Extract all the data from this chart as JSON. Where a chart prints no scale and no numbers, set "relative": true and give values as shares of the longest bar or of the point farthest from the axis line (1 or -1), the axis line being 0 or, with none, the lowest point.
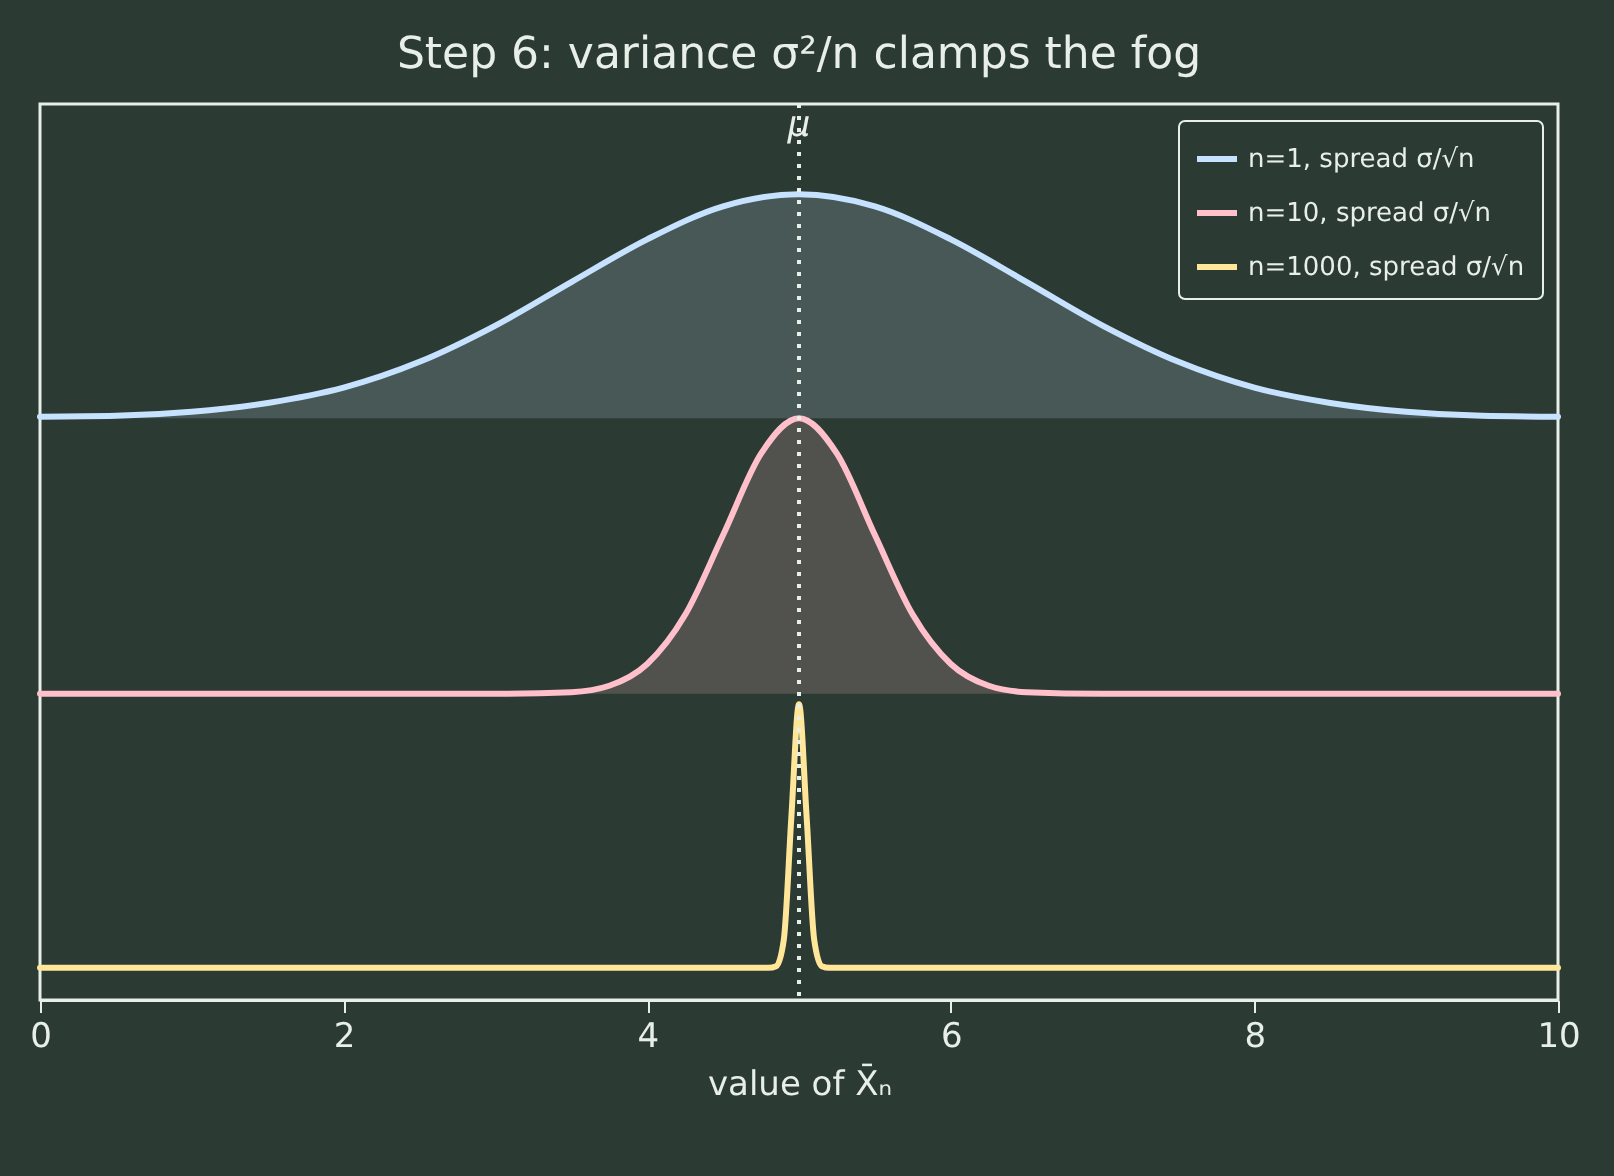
{
  "chart_data": {
    "type": "line",
    "relative": true,
    "title": "Step 6: variance σ²/n clamps the fog",
    "xlabel": "value of X̄ₙ",
    "xlim": [
      0,
      10
    ],
    "xticks": [
      0,
      2,
      4,
      6,
      8,
      10
    ],
    "grid": false,
    "legend": "top right",
    "line_style": "solid",
    "marker": "none",
    "series": [
      {
        "name": "n=1, spread σ/√n",
        "color": "#c6e2ff",
        "x": [
          0,
          0.5,
          1,
          1.5,
          2,
          2.5,
          3,
          3.5,
          4,
          4.5,
          5,
          5.5,
          6,
          6.5,
          7,
          7.5,
          8,
          8.5,
          9,
          9.5,
          10
        ],
        "values": [
          0.724,
          0.725,
          0.73,
          0.741,
          0.76,
          0.792,
          0.837,
          0.891,
          0.944,
          0.985,
          1,
          0.985,
          0.944,
          0.891,
          0.837,
          0.792,
          0.76,
          0.741,
          0.73,
          0.725,
          0.724
        ],
        "lower": [
          0.722,
          0.722,
          0.722,
          0.722,
          0.722,
          0.722,
          0.722,
          0.722,
          0.722,
          0.722,
          0.722,
          0.722,
          0.722,
          0.722,
          0.722,
          0.722,
          0.722,
          0.722,
          0.722,
          0.722,
          0.722
        ],
        "upper": [
          0.724,
          0.725,
          0.73,
          0.741,
          0.76,
          0.792,
          0.837,
          0.891,
          0.944,
          0.985,
          1,
          0.985,
          0.944,
          0.891,
          0.837,
          0.792,
          0.76,
          0.741,
          0.73,
          0.725,
          0.724
        ]
      },
      {
        "name": "n=10, spread σ/√n",
        "color": "#ffc0cb",
        "x": [
          0,
          3,
          3.5,
          3.75,
          4,
          4.25,
          4.5,
          4.75,
          5,
          5.25,
          5.5,
          5.75,
          6,
          6.25,
          6.5,
          7,
          10
        ],
        "values": [
          0.38,
          0.38,
          0.382,
          0.39,
          0.417,
          0.478,
          0.577,
          0.678,
          0.722,
          0.678,
          0.577,
          0.478,
          0.417,
          0.39,
          0.382,
          0.38,
          0.38
        ],
        "lower": [
          0.38,
          0.38,
          0.38,
          0.38,
          0.38,
          0.38,
          0.38,
          0.38,
          0.38,
          0.38,
          0.38,
          0.38,
          0.38,
          0.38,
          0.38,
          0.38,
          0.38
        ],
        "upper": [
          0.38,
          0.38,
          0.382,
          0.39,
          0.417,
          0.478,
          0.577,
          0.678,
          0.722,
          0.678,
          0.577,
          0.478,
          0.417,
          0.39,
          0.382,
          0.38,
          0.38
        ]
      },
      {
        "name": "n=1000, spread σ/√n",
        "color": "#ffe699",
        "x": [
          0,
          4.8,
          4.85,
          4.9,
          4.95,
          5,
          5.05,
          5.1,
          5.15,
          5.2,
          10
        ],
        "values": [
          0.04,
          0.04,
          0.042,
          0.075,
          0.228,
          0.367,
          0.228,
          0.075,
          0.042,
          0.04,
          0.04
        ]
      }
    ],
    "ref_lines": [
      {
        "axis": "x",
        "value": 5,
        "label": "μ",
        "color": "#e8eee8",
        "line_style": "dotted"
      }
    ]
  }
}
